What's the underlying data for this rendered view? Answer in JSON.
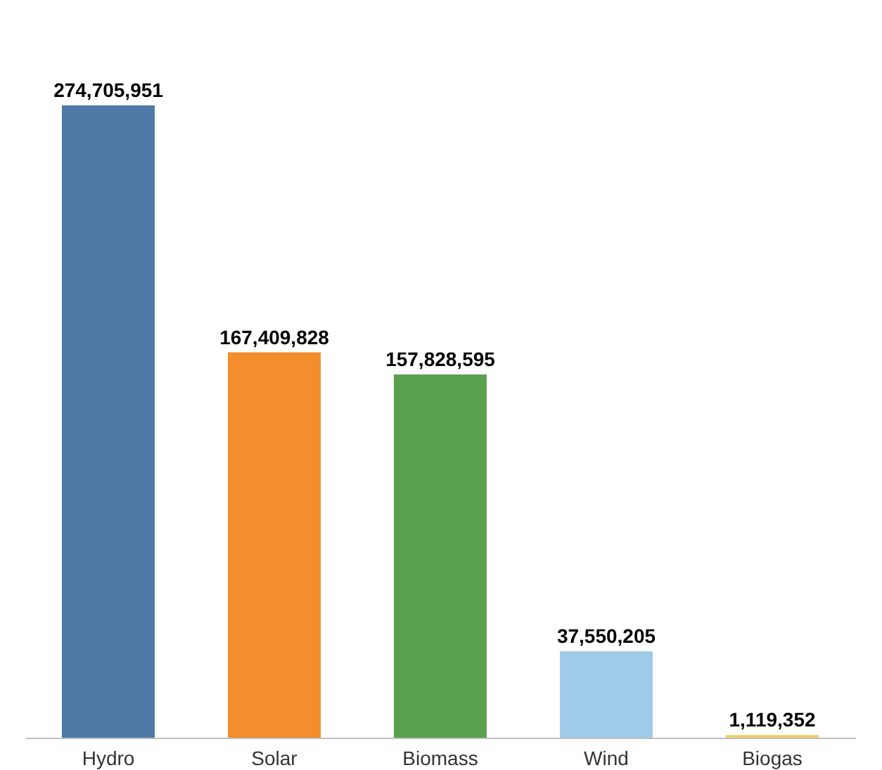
{
  "chart_data": {
    "type": "bar",
    "categories": [
      "Hydro",
      "Solar",
      "Biomass",
      "Wind",
      "Biogas"
    ],
    "values": [
      274705951,
      167409828,
      157828595,
      37550205,
      1119352
    ],
    "value_labels": [
      "274,705,951",
      "167,409,828",
      "157,828,595",
      "37,550,205",
      "1,119,352"
    ],
    "colors": [
      "#4e79a7",
      "#f28e2b",
      "#59a14f",
      "#a0cbe8",
      "#f1ce63"
    ]
  }
}
